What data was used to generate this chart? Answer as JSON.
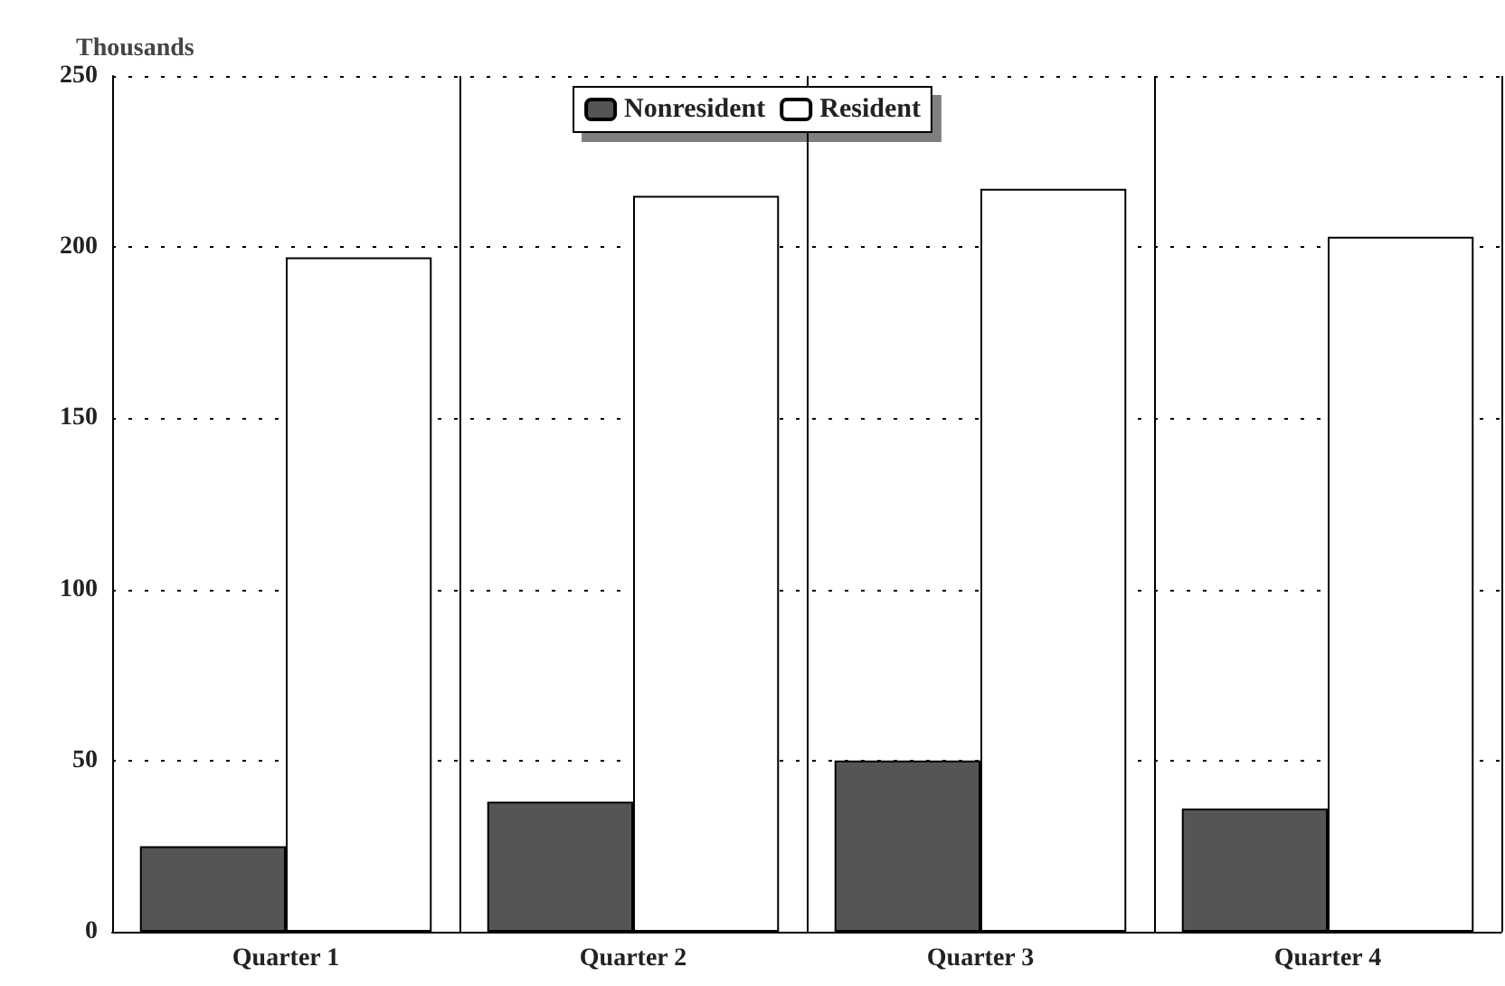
{
  "chart_data": {
    "type": "bar",
    "ylabel": "Thousands",
    "categories": [
      "Quarter 1",
      "Quarter 2",
      "Quarter 3",
      "Quarter 4"
    ],
    "series": [
      {
        "name": "Nonresident",
        "color": "#555555",
        "values": [
          25,
          38,
          50,
          36
        ]
      },
      {
        "name": "Resident",
        "color": "#ffffff",
        "values": [
          197,
          215,
          217,
          203
        ]
      }
    ],
    "ylim": [
      0,
      250
    ],
    "yticks": [
      0,
      50,
      100,
      150,
      200,
      250
    ],
    "grid": true,
    "legend": "top"
  }
}
